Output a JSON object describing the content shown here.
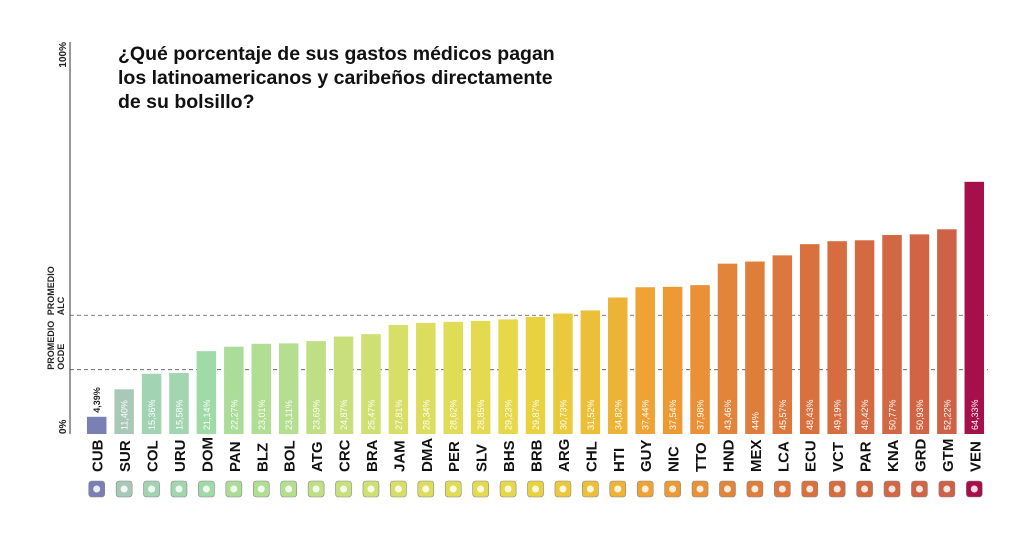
{
  "chart_data": {
    "type": "bar",
    "title": "¿Qué porcentaje de sus gastos médicos pagan\nlos latinoamericanos y caribeños directamente\nde su bolsillo?",
    "xlabel": "",
    "ylabel": "",
    "ylim": [
      0,
      100
    ],
    "y_tick_labels": [
      "0%",
      "100%"
    ],
    "reference_lines": [
      {
        "label": "PROMEDIO\nALC",
        "value": 30.3,
        "style": "dashed"
      },
      {
        "label": "PROMEDIO\nOCDE",
        "value": 16.4,
        "style": "dashed"
      }
    ],
    "categories": [
      "CUB",
      "SUR",
      "COL",
      "URU",
      "DOM",
      "PAN",
      "BLZ",
      "BOL",
      "ATG",
      "CRC",
      "BRA",
      "JAM",
      "DMA",
      "PER",
      "SLV",
      "BHS",
      "BRB",
      "ARG",
      "CHL",
      "HTI",
      "GUY",
      "NIC",
      "TTO",
      "HND",
      "MEX",
      "LCA",
      "ECU",
      "VCT",
      "PAR",
      "KNA",
      "GRD",
      "GTM",
      "VEN"
    ],
    "values": [
      4.39,
      11.4,
      15.36,
      15.58,
      21.14,
      22.27,
      23.01,
      23.11,
      23.69,
      24.87,
      25.47,
      27.81,
      28.34,
      28.62,
      28.85,
      29.23,
      29.87,
      30.73,
      31.52,
      34.82,
      37.44,
      37.54,
      37.98,
      43.46,
      44,
      45.57,
      48.43,
      49.19,
      49.42,
      50.77,
      50.93,
      52.22,
      64.33
    ],
    "value_labels": [
      "4,39%",
      "11,40%",
      "15,36%",
      "15,58%",
      "21,14%",
      "22,27%",
      "23,01%",
      "23,11%",
      "23,69%",
      "24,87%",
      "25,47%",
      "27,81%",
      "28,34%",
      "28,62%",
      "28,85%",
      "29,23%",
      "29,87%",
      "30,73%",
      "31,52%",
      "34,82%",
      "37,44%",
      "37,54%",
      "37,98%",
      "43,46%",
      "44%",
      "45,57%",
      "48,43%",
      "49,19%",
      "49,42%",
      "50,77%",
      "50,93%",
      "52,22%",
      "64,33%"
    ],
    "colors": [
      "#7b80b4",
      "#a9c9b8",
      "#a2d4b3",
      "#a3d5b0",
      "#a0dba7",
      "#abdc98",
      "#b1de92",
      "#b4de90",
      "#bfdf85",
      "#c7e07c",
      "#cfe073",
      "#d8df66",
      "#dcdd5c",
      "#e0dc56",
      "#e3da50",
      "#e6d848",
      "#e8d23f",
      "#eac93b",
      "#ecbf38",
      "#edb336",
      "#eea334",
      "#ed9a34",
      "#ea9036",
      "#e28439",
      "#df7d3b",
      "#dc773d",
      "#d8713e",
      "#d66d40",
      "#d46a41",
      "#d26743",
      "#d06444",
      "#cd6246",
      "#a6104a"
    ],
    "flags": [
      "cuba-flag-icon",
      "suriname-flag-icon",
      "colombia-flag-icon",
      "uruguay-flag-icon",
      "dominican-republic-flag-icon",
      "panama-flag-icon",
      "belize-flag-icon",
      "bolivia-flag-icon",
      "antigua-flag-icon",
      "costa-rica-flag-icon",
      "brazil-flag-icon",
      "jamaica-flag-icon",
      "dominica-flag-icon",
      "peru-flag-icon",
      "el-salvador-flag-icon",
      "bahamas-flag-icon",
      "barbados-flag-icon",
      "argentina-flag-icon",
      "chile-flag-icon",
      "haiti-flag-icon",
      "guyana-flag-icon",
      "nicaragua-flag-icon",
      "trinidad-flag-icon",
      "honduras-flag-icon",
      "mexico-flag-icon",
      "saint-lucia-flag-icon",
      "ecuador-flag-icon",
      "saint-vincent-flag-icon",
      "paraguay-flag-icon",
      "saint-kitts-flag-icon",
      "grenada-flag-icon",
      "guatemala-flag-icon",
      "venezuela-flag-icon"
    ],
    "legend": "none",
    "grid": false
  }
}
